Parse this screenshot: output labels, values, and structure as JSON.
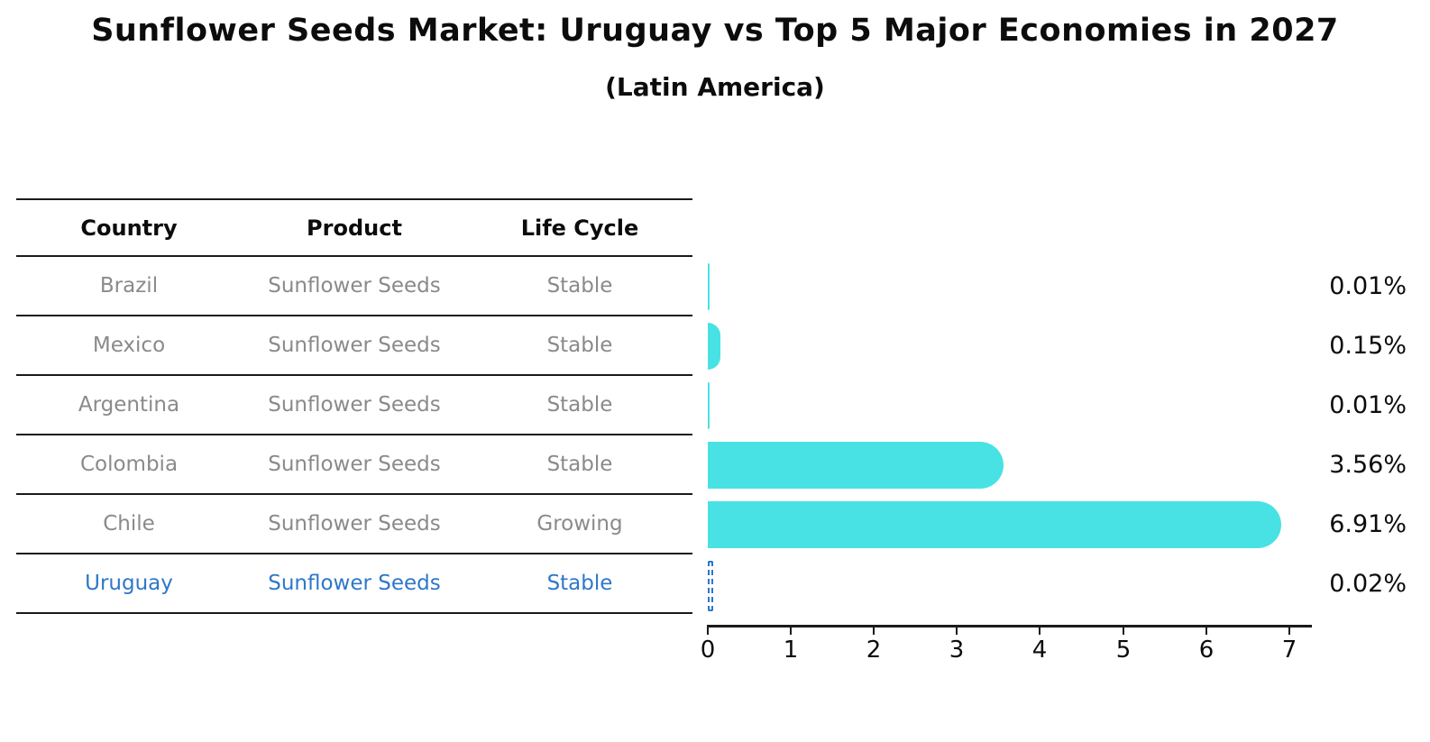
{
  "header": {
    "title": "Sunflower Seeds Market: Uruguay vs Top 5 Major Economies in 2027",
    "subtitle": "(Latin America)"
  },
  "table": {
    "headers": [
      "Country",
      "Product",
      "Life Cycle"
    ],
    "rows": [
      {
        "country": "Brazil",
        "product": "Sunflower Seeds",
        "life_cycle": "Stable",
        "highlight": false
      },
      {
        "country": "Mexico",
        "product": "Sunflower Seeds",
        "life_cycle": "Stable",
        "highlight": false
      },
      {
        "country": "Argentina",
        "product": "Sunflower Seeds",
        "life_cycle": "Stable",
        "highlight": false
      },
      {
        "country": "Colombia",
        "product": "Sunflower Seeds",
        "life_cycle": "Stable",
        "highlight": false
      },
      {
        "country": "Chile",
        "product": "Sunflower Seeds",
        "life_cycle": "Growing",
        "highlight": false
      },
      {
        "country": "Uruguay",
        "product": "Sunflower Seeds",
        "life_cycle": "Stable",
        "highlight": true
      }
    ]
  },
  "chart_data": {
    "type": "bar",
    "orientation": "horizontal",
    "title": "Sunflower Seeds Market: Uruguay vs Top 5 Major Economies in 2027",
    "subtitle": "(Latin America)",
    "categories": [
      "Brazil",
      "Mexico",
      "Argentina",
      "Colombia",
      "Chile",
      "Uruguay"
    ],
    "values": [
      0.01,
      0.15,
      0.01,
      3.56,
      6.91,
      0.02
    ],
    "value_labels": [
      "0.01%",
      "0.15%",
      "0.01%",
      "3.56%",
      "6.91%",
      "0.02%"
    ],
    "xtick_labels": [
      "0",
      "1",
      "2",
      "3",
      "4",
      "5",
      "6",
      "7"
    ],
    "xlim": [
      0,
      7.27
    ],
    "grid": false,
    "legend": null,
    "bar_color": "#48e2e4",
    "highlight_index": 5,
    "highlight_color": "#2e77c9",
    "text_color": "#0c0c0c",
    "muted_text_color": "#8a8a8a"
  }
}
